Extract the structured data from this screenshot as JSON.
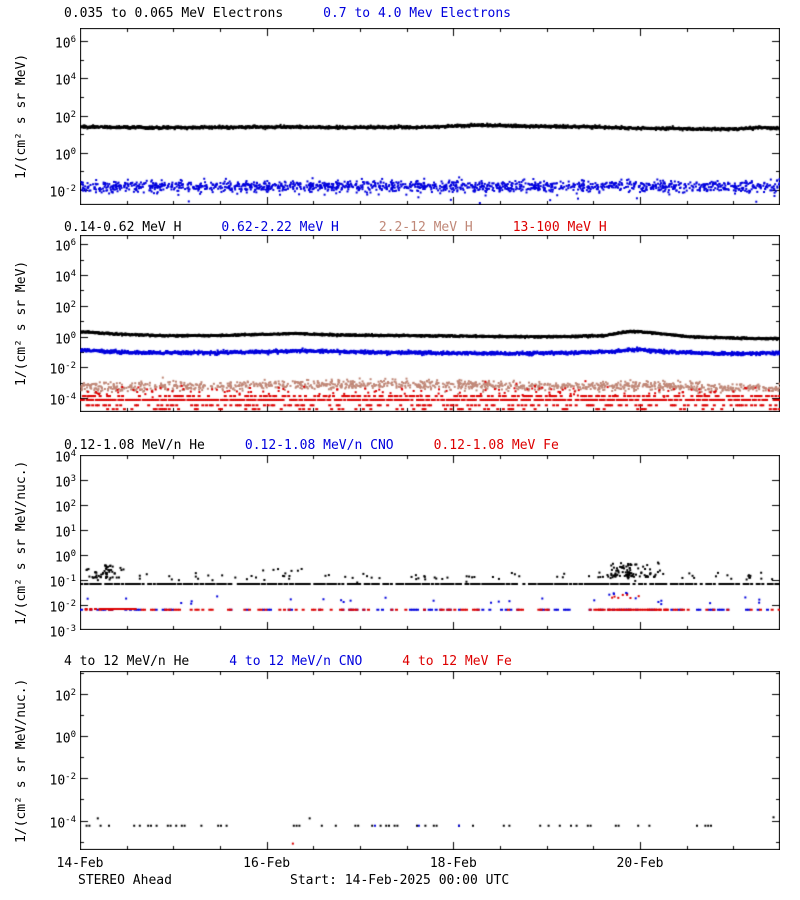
{
  "figure": {
    "background": "#ffffff",
    "frame_color": "#000000",
    "tick_base": "10"
  },
  "footer": {
    "left": "STEREO Ahead",
    "center": "Start: 14-Feb-2025 00:00 UTC"
  },
  "x_axis": {
    "span_days": 7.5,
    "minor_step_days": 0.5,
    "major_ticks": [
      {
        "day": 0,
        "label": "14-Feb"
      },
      {
        "day": 2,
        "label": "16-Feb"
      },
      {
        "day": 4,
        "label": "18-Feb"
      },
      {
        "day": 6,
        "label": "20-Feb"
      }
    ]
  },
  "chart_data": [
    {
      "type": "scatter",
      "id": "electrons",
      "titles": [
        {
          "text": "0.035 to 0.065 MeV Electrons",
          "color": "#000000"
        },
        {
          "text": "0.7 to 4.0 Mev Electrons",
          "color": "#0000DD"
        }
      ],
      "ylabel": "1/(cm² s sr MeV)",
      "ylog_min": -2.8,
      "ylog_max": 6.7,
      "labeled_exponents": [
        6,
        4,
        2,
        0,
        -2
      ],
      "minor_exponents": [
        5,
        3,
        1,
        -1
      ],
      "series": [
        {
          "name": "0.035 to 0.065 MeV Electrons",
          "color": "#000000",
          "type": "noisy_line",
          "n": 2200,
          "sigma": 0.035,
          "size": 2,
          "ctrl": [
            [
              0,
              1.45
            ],
            [
              0.3,
              1.43
            ],
            [
              0.8,
              1.4
            ],
            [
              1.3,
              1.42
            ],
            [
              1.8,
              1.43
            ],
            [
              2.3,
              1.44
            ],
            [
              2.8,
              1.42
            ],
            [
              3.3,
              1.43
            ],
            [
              3.8,
              1.44
            ],
            [
              4.25,
              1.54
            ],
            [
              4.6,
              1.5
            ],
            [
              5.0,
              1.47
            ],
            [
              5.5,
              1.44
            ],
            [
              6.0,
              1.38
            ],
            [
              6.5,
              1.34
            ],
            [
              7.0,
              1.32
            ],
            [
              7.25,
              1.4
            ],
            [
              7.5,
              1.38
            ]
          ]
        },
        {
          "name": "0.7 to 4.0 Mev Electrons",
          "color": "#0000DD",
          "type": "scatter_band",
          "n": 1500,
          "sigma": 0.16,
          "size": 2,
          "outlier_frac": 0.025,
          "outlier_max_down": 0.9,
          "ctrl": [
            [
              0,
              -1.75
            ],
            [
              7.5,
              -1.75
            ]
          ]
        }
      ]
    },
    {
      "type": "scatter",
      "id": "protons",
      "titles": [
        {
          "text": "0.14-0.62 MeV H",
          "color": "#000000"
        },
        {
          "text": "0.62-2.22 MeV H",
          "color": "#0000DD"
        },
        {
          "text": "2.2-12 MeV H",
          "color": "#C08878"
        },
        {
          "text": "13-100 MeV H",
          "color": "#DD0000"
        }
      ],
      "ylabel": "1/(cm² s sr MeV)",
      "ylog_min": -4.9,
      "ylog_max": 6.6,
      "labeled_exponents": [
        6,
        4,
        2,
        0,
        -2,
        -4
      ],
      "minor_exponents": [
        5,
        3,
        1,
        -1,
        -3
      ],
      "series": [
        {
          "name": "0.14-0.62 MeV H",
          "color": "#000000",
          "type": "noisy_line",
          "n": 2200,
          "sigma": 0.03,
          "size": 2,
          "ctrl": [
            [
              0,
              0.38
            ],
            [
              0.4,
              0.22
            ],
            [
              0.9,
              0.12
            ],
            [
              1.4,
              0.13
            ],
            [
              1.9,
              0.2
            ],
            [
              2.3,
              0.27
            ],
            [
              2.7,
              0.18
            ],
            [
              3.2,
              0.14
            ],
            [
              3.7,
              0.12
            ],
            [
              4.2,
              0.09
            ],
            [
              4.7,
              0.05
            ],
            [
              5.2,
              0.06
            ],
            [
              5.6,
              0.13
            ],
            [
              5.9,
              0.42
            ],
            [
              6.15,
              0.3
            ],
            [
              6.5,
              0.06
            ],
            [
              7.0,
              -0.04
            ],
            [
              7.5,
              -0.08
            ]
          ]
        },
        {
          "name": "0.62-2.22 MeV H",
          "color": "#0000DD",
          "type": "noisy_line",
          "n": 2000,
          "sigma": 0.055,
          "size": 2,
          "ctrl": [
            [
              0,
              -0.82
            ],
            [
              0.5,
              -0.95
            ],
            [
              1.0,
              -1.0
            ],
            [
              1.5,
              -0.97
            ],
            [
              2.0,
              -0.92
            ],
            [
              2.4,
              -0.85
            ],
            [
              2.8,
              -0.92
            ],
            [
              3.3,
              -0.97
            ],
            [
              3.8,
              -1.0
            ],
            [
              4.3,
              -1.03
            ],
            [
              4.8,
              -1.02
            ],
            [
              5.3,
              -0.98
            ],
            [
              5.7,
              -0.9
            ],
            [
              5.95,
              -0.78
            ],
            [
              6.2,
              -0.9
            ],
            [
              6.6,
              -1.0
            ],
            [
              7.0,
              -1.05
            ],
            [
              7.5,
              -1.0
            ]
          ]
        },
        {
          "name": "2.2-12 MeV H",
          "color": "#C08878",
          "type": "scatter_band",
          "n": 1200,
          "sigma": 0.15,
          "size": 2,
          "ctrl": [
            [
              0,
              -3.25
            ],
            [
              1,
              -3.18
            ],
            [
              2,
              -3.08
            ],
            [
              3,
              -3.05
            ],
            [
              4,
              -3.1
            ],
            [
              4.7,
              -3.17
            ],
            [
              5.5,
              -3.2
            ],
            [
              6.0,
              -3.15
            ],
            [
              6.6,
              -3.25
            ],
            [
              7.5,
              -3.3
            ]
          ]
        },
        {
          "name": "13-100 MeV H quantized",
          "color": "#DD0000",
          "type": "rows",
          "step_days": 0.02,
          "dash_w": 3,
          "dash_h": 2,
          "rows": [
            {
              "logy": -3.8,
              "p": 0.45
            },
            {
              "logy": -4.05,
              "p": 0.8
            },
            {
              "logy": -4.4,
              "p": 0.35
            },
            {
              "logy": -4.65,
              "p": 0.18
            }
          ]
        },
        {
          "name": "13-100 MeV H scatter",
          "color": "#DD0000",
          "type": "scatter_band",
          "n": 130,
          "sigma": 0.18,
          "size": 2,
          "ctrl": [
            [
              0,
              -3.5
            ],
            [
              7.5,
              -3.5
            ]
          ]
        }
      ]
    },
    {
      "type": "scatter",
      "id": "low-energy-ions",
      "titles": [
        {
          "text": "0.12-1.08 MeV/n He",
          "color": "#000000"
        },
        {
          "text": "0.12-1.08 MeV/n CNO",
          "color": "#0000DD"
        },
        {
          "text": "0.12-1.08 MeV Fe",
          "color": "#DD0000"
        }
      ],
      "ylabel": "1/(cm² s sr MeV/nuc.)",
      "ylog_min": -3,
      "ylog_max": 4,
      "labeled_exponents": [
        4,
        3,
        2,
        1,
        0,
        -1,
        -2,
        -3
      ],
      "minor_exponents": [],
      "series": [
        {
          "name": "He baseline row",
          "color": "#000000",
          "type": "rows",
          "step_days": 0.02,
          "dash_w": 3,
          "dash_h": 2,
          "rows": [
            {
              "logy": -1.12,
              "p": 0.72
            }
          ]
        },
        {
          "name": "He singles",
          "color": "#000000",
          "type": "scatter_band",
          "n": 90,
          "sigma": 0.07,
          "size": 2,
          "ctrl": [
            [
              0,
              -0.83
            ],
            [
              7.5,
              -0.83
            ]
          ]
        },
        {
          "name": "He onset cluster",
          "color": "#000000",
          "type": "cluster",
          "x0": 0.03,
          "x1": 0.5,
          "ymin": -0.88,
          "ymax": -0.35,
          "n": 50,
          "size": 2
        },
        {
          "name": "He event cluster",
          "color": "#000000",
          "type": "cluster",
          "x0": 5.5,
          "x1": 6.25,
          "ymin": -0.85,
          "ymax": -0.25,
          "n": 90,
          "size": 2
        },
        {
          "name": "He mid singles",
          "color": "#000000",
          "type": "cluster",
          "x0": 1.5,
          "x1": 2.8,
          "ymin": -0.6,
          "ymax": -0.5,
          "n": 6,
          "size": 2
        },
        {
          "name": "CNO singles",
          "color": "#0000DD",
          "type": "scatter_band",
          "n": 26,
          "sigma": 0.08,
          "size": 2,
          "ctrl": [
            [
              0,
              -1.78
            ],
            [
              7.5,
              -1.78
            ]
          ]
        },
        {
          "name": "CNO event points",
          "color": "#0000DD",
          "type": "cluster",
          "x0": 5.6,
          "x1": 5.95,
          "ymin": -1.55,
          "ymax": -1.42,
          "n": 5,
          "size": 2
        },
        {
          "name": "CNO baseline row",
          "color": "#0000DD",
          "type": "rows",
          "step_days": 0.025,
          "dash_w": 3,
          "dash_h": 2,
          "rows": [
            {
              "logy": -2.15,
              "p": 0.3
            }
          ]
        },
        {
          "name": "Fe baseline row",
          "color": "#DD0000",
          "type": "rows",
          "step_days": 0.025,
          "dash_w": 3,
          "dash_h": 2,
          "rows": [
            {
              "logy": -2.15,
              "p": 0.28
            },
            {
              "logy": -2.15,
              "p": 0.92,
              "x0": 5.5,
              "x1": 6.3
            },
            {
              "logy": -2.12,
              "p": 0.8,
              "x0": 0.05,
              "x1": 0.6
            }
          ]
        },
        {
          "name": "Fe event points",
          "color": "#DD0000",
          "type": "cluster",
          "x0": 5.6,
          "x1": 6.1,
          "ymin": -1.68,
          "ymax": -1.55,
          "n": 7,
          "size": 2
        }
      ]
    },
    {
      "type": "scatter",
      "id": "high-energy-ions",
      "titles": [
        {
          "text": "4 to 12 MeV/n He",
          "color": "#000000"
        },
        {
          "text": "4 to 12 MeV/n CNO",
          "color": "#0000DD"
        },
        {
          "text": "4 to 12 MeV Fe",
          "color": "#DD0000"
        }
      ],
      "ylabel": "1/(cm² s sr MeV/nuc.)",
      "ylog_min": -5.4,
      "ylog_max": 3.1,
      "labeled_exponents": [
        2,
        0,
        -2,
        -4
      ],
      "minor_exponents": [
        3,
        1,
        -1,
        -3,
        -5
      ],
      "series": [
        {
          "name": "He quantized row",
          "color": "#000000",
          "type": "rows",
          "step_days": 0.03,
          "dash_w": 2,
          "dash_h": 2,
          "rows": [
            {
              "logy": -4.2,
              "p": 0.22
            }
          ]
        },
        {
          "name": "He singles",
          "color": "#000000",
          "type": "points",
          "size": 2,
          "pts": [
            [
              0.18,
              -3.85
            ],
            [
              2.45,
              -3.85
            ],
            [
              7.42,
              -3.8
            ]
          ]
        },
        {
          "name": "CNO singles",
          "color": "#0000DD",
          "type": "points",
          "size": 2,
          "pts": [
            [
              3.15,
              -4.2
            ],
            [
              3.62,
              -4.2
            ],
            [
              4.05,
              -4.2
            ]
          ]
        },
        {
          "name": "Fe singles",
          "color": "#DD0000",
          "type": "points",
          "size": 2,
          "pts": [
            [
              2.27,
              -5.05
            ]
          ]
        }
      ]
    }
  ]
}
